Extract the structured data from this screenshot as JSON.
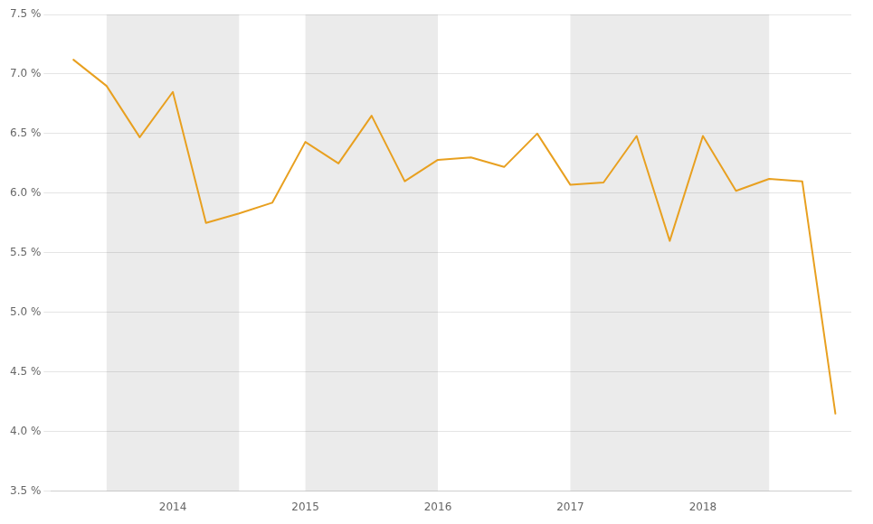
{
  "chart_data": {
    "type": "line",
    "x": [
      2013.25,
      2013.5,
      2013.75,
      2014.0,
      2014.25,
      2014.5,
      2014.75,
      2015.0,
      2015.25,
      2015.5,
      2015.75,
      2016.0,
      2016.25,
      2016.5,
      2016.75,
      2017.0,
      2017.25,
      2017.5,
      2017.75,
      2018.0,
      2018.25,
      2018.5,
      2018.75,
      2019.0
    ],
    "values": [
      7.12,
      6.9,
      6.47,
      6.85,
      5.75,
      5.83,
      5.92,
      6.43,
      6.25,
      6.65,
      6.1,
      6.28,
      6.3,
      6.22,
      6.5,
      6.07,
      6.09,
      6.48,
      5.6,
      6.48,
      6.02,
      6.12,
      6.1,
      4.15
    ],
    "color": "#E8A020",
    "xlim": [
      2013.08,
      2019.12
    ],
    "xticks": [
      2014,
      2015,
      2016,
      2017,
      2018
    ],
    "ylim": [
      3.5,
      7.5
    ],
    "yticks": [
      {
        "value": 3.5,
        "label": "3.5 %"
      },
      {
        "value": 4.0,
        "label": "4.0 %"
      },
      {
        "value": 4.5,
        "label": "4.5 %"
      },
      {
        "value": 5.0,
        "label": "5.0 %"
      },
      {
        "value": 5.5,
        "label": "5.5 %"
      },
      {
        "value": 6.0,
        "label": "6.0 %"
      },
      {
        "value": 6.5,
        "label": "6.5 %"
      },
      {
        "value": 7.0,
        "label": "7.0 %"
      },
      {
        "value": 7.5,
        "label": "7.5 %"
      }
    ],
    "grid": "y",
    "bands": {
      "ranges": [
        [
          2013.5,
          2014.5
        ],
        [
          2015.0,
          2016.0
        ],
        [
          2017.0,
          2018.5
        ]
      ],
      "color": "#EBEBEB"
    }
  }
}
